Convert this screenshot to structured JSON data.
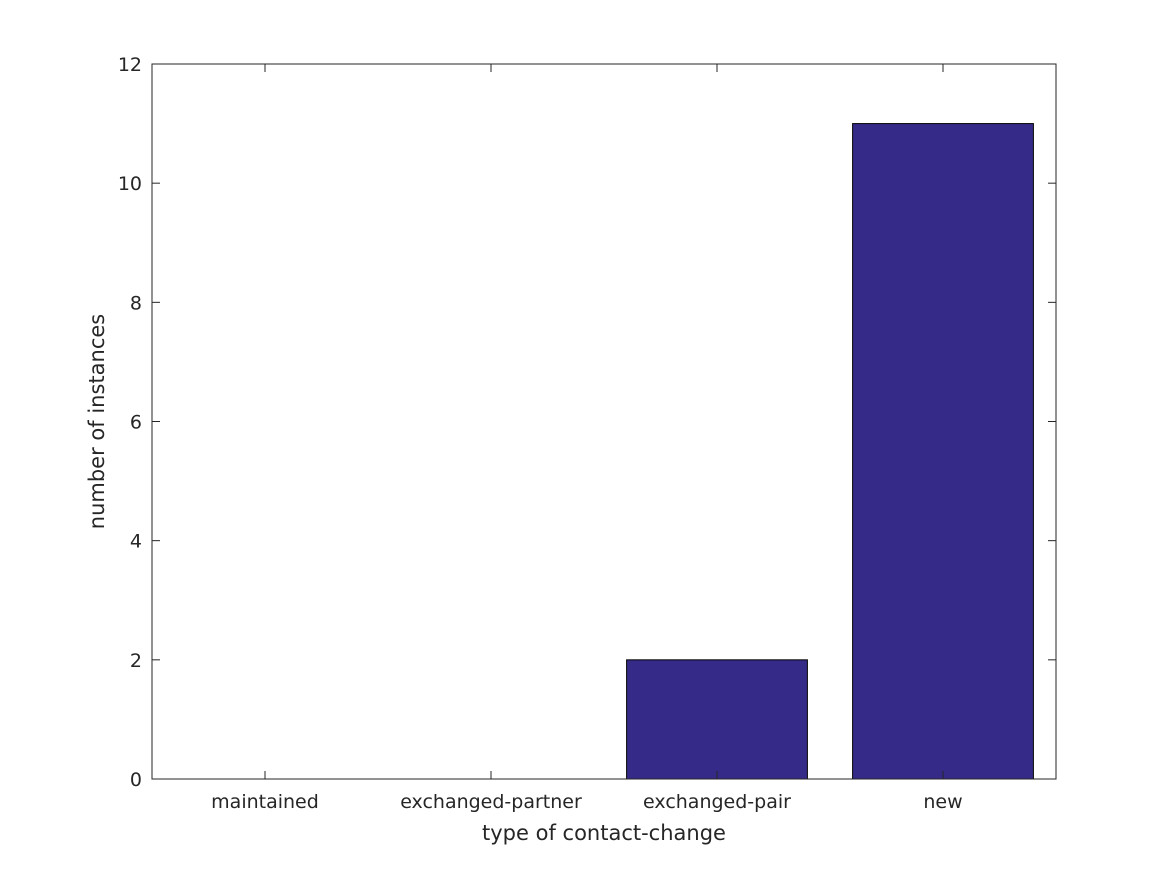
{
  "chart_data": {
    "type": "bar",
    "categories": [
      "maintained",
      "exchanged-partner",
      "exchanged-pair",
      "new"
    ],
    "values": [
      0,
      0,
      2,
      11
    ],
    "xlabel": "type of contact-change",
    "ylabel": "number of instances",
    "ylim": [
      0,
      12
    ],
    "yticks": [
      "0",
      "2",
      "4",
      "6",
      "8",
      "10",
      "12"
    ],
    "grid": false,
    "bar_color": "#352a87",
    "axis_color": "#262626"
  }
}
